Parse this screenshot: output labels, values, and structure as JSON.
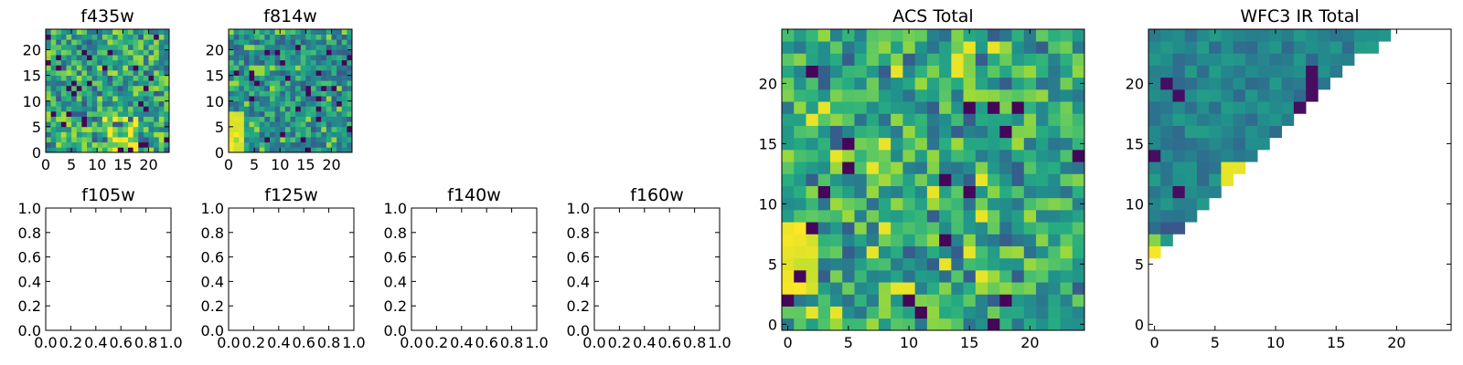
{
  "chart_data": [
    {
      "id": "f435w",
      "type": "heatmap",
      "title": "f435w",
      "xlim": [
        0,
        24
      ],
      "ylim": [
        0,
        24
      ],
      "xticks": [
        "0",
        "5",
        "10",
        "15",
        "20"
      ],
      "yticks": [
        "0",
        "5",
        "10",
        "15",
        "20"
      ],
      "pattern": "acs-filter-a",
      "nx": 24,
      "ny": 24
    },
    {
      "id": "f814w",
      "type": "heatmap",
      "title": "f814w",
      "xlim": [
        0,
        24
      ],
      "ylim": [
        0,
        24
      ],
      "xticks": [
        "0",
        "5",
        "10",
        "15",
        "20"
      ],
      "yticks": [
        "0",
        "5",
        "10",
        "15",
        "20"
      ],
      "pattern": "acs-filter-b",
      "nx": 24,
      "ny": 24
    },
    {
      "id": "f105w",
      "type": "heatmap",
      "title": "f105w",
      "xlim": [
        0,
        1
      ],
      "ylim": [
        0,
        1
      ],
      "xticks": [
        "0.0",
        "0.2",
        "0.4",
        "0.6",
        "0.8",
        "1.0"
      ],
      "yticks": [
        "0.0",
        "0.2",
        "0.4",
        "0.6",
        "0.8",
        "1.0"
      ],
      "empty": true
    },
    {
      "id": "f125w",
      "type": "heatmap",
      "title": "f125w",
      "xlim": [
        0,
        1
      ],
      "ylim": [
        0,
        1
      ],
      "xticks": [
        "0.0",
        "0.2",
        "0.4",
        "0.6",
        "0.8",
        "1.0"
      ],
      "yticks": [
        "0.0",
        "0.2",
        "0.4",
        "0.6",
        "0.8",
        "1.0"
      ],
      "empty": true
    },
    {
      "id": "f140w",
      "type": "heatmap",
      "title": "f140w",
      "xlim": [
        0,
        1
      ],
      "ylim": [
        0,
        1
      ],
      "xticks": [
        "0.0",
        "0.2",
        "0.4",
        "0.6",
        "0.8",
        "1.0"
      ],
      "yticks": [
        "0.0",
        "0.2",
        "0.4",
        "0.6",
        "0.8",
        "1.0"
      ],
      "empty": true
    },
    {
      "id": "f160w",
      "type": "heatmap",
      "title": "f160w",
      "xlim": [
        0,
        1
      ],
      "ylim": [
        0,
        1
      ],
      "xticks": [
        "0.0",
        "0.2",
        "0.4",
        "0.6",
        "0.8",
        "1.0"
      ],
      "yticks": [
        "0.0",
        "0.2",
        "0.4",
        "0.6",
        "0.8",
        "1.0"
      ],
      "empty": true
    },
    {
      "id": "acs_total",
      "type": "heatmap",
      "title": "ACS Total",
      "xlim": [
        -0.5,
        24.5
      ],
      "ylim": [
        -0.5,
        24.5
      ],
      "xticks": [
        "0",
        "5",
        "10",
        "15",
        "20"
      ],
      "yticks": [
        "0",
        "5",
        "10",
        "15",
        "20"
      ],
      "pattern": "acs-total",
      "nx": 25,
      "ny": 25
    },
    {
      "id": "wfc3_total",
      "type": "heatmap",
      "title": "WFC3 IR Total",
      "xlim": [
        -0.5,
        24.5
      ],
      "ylim": [
        -0.5,
        24.5
      ],
      "xticks": [
        "0",
        "5",
        "10",
        "15",
        "20"
      ],
      "yticks": [
        "0",
        "5",
        "10",
        "15",
        "20"
      ],
      "pattern": "upper-triangle",
      "nx": 25,
      "ny": 25
    }
  ],
  "colormap": "viridis",
  "colors": {
    "low": "#440154",
    "mid": "#21918c",
    "high": "#fde725"
  }
}
